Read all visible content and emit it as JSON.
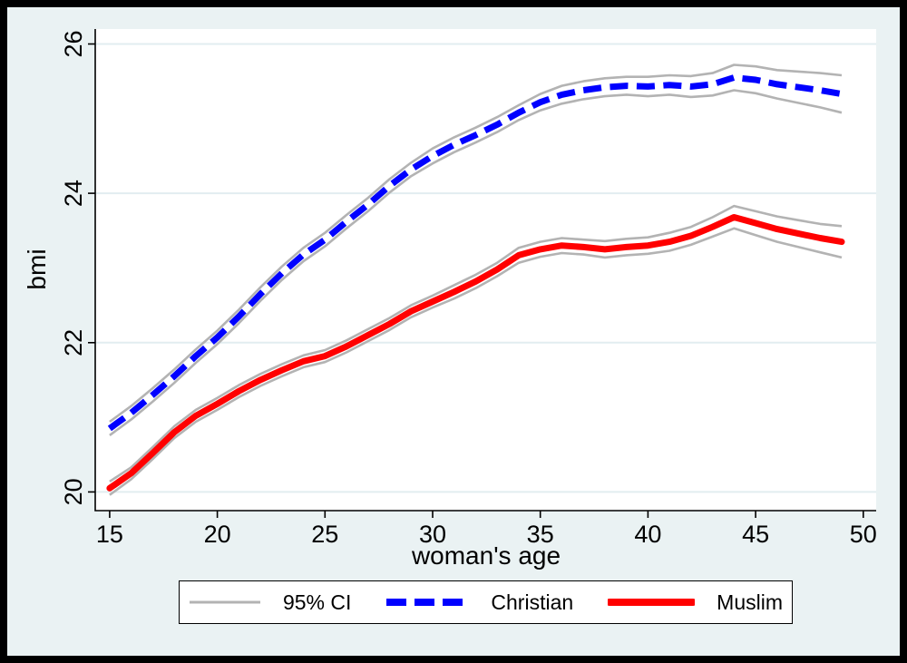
{
  "figure": {
    "frame_color": "#000000",
    "background_color": "#eaf2f3",
    "plot_background_color": "#ffffff",
    "grid_color": "#e2edf0",
    "axis_color": "#000000",
    "text_color": "#000000"
  },
  "chart_data": {
    "type": "line",
    "title": "",
    "xlabel": "woman's age",
    "ylabel": "bmi",
    "xlim": [
      14.33,
      50.6
    ],
    "ylim": [
      19.75,
      26.2
    ],
    "x_ticks": [
      15,
      20,
      25,
      30,
      35,
      40,
      45,
      50
    ],
    "y_ticks": [
      20,
      22,
      24,
      26
    ],
    "grid": "horizontal",
    "x": [
      15,
      16,
      17,
      18,
      19,
      20,
      21,
      22,
      23,
      24,
      25,
      26,
      27,
      28,
      29,
      30,
      31,
      32,
      33,
      34,
      35,
      36,
      37,
      38,
      39,
      40,
      41,
      42,
      43,
      44,
      45,
      46,
      47,
      48,
      49
    ],
    "series": [
      {
        "name": "Christian",
        "color": "#0000ff",
        "style": "dashed",
        "values": [
          20.85,
          21.06,
          21.3,
          21.55,
          21.82,
          22.07,
          22.35,
          22.65,
          22.93,
          23.18,
          23.38,
          23.62,
          23.85,
          24.1,
          24.32,
          24.5,
          24.65,
          24.78,
          24.92,
          25.08,
          25.22,
          25.32,
          25.38,
          25.42,
          25.44,
          25.43,
          25.45,
          25.43,
          25.46,
          25.55,
          25.52,
          25.46,
          25.42,
          25.38,
          25.33
        ]
      },
      {
        "name": "Muslim",
        "color": "#ff0000",
        "style": "solid",
        "values": [
          20.05,
          20.25,
          20.52,
          20.8,
          21.02,
          21.18,
          21.35,
          21.5,
          21.63,
          21.75,
          21.82,
          21.95,
          22.1,
          22.25,
          22.42,
          22.55,
          22.68,
          22.82,
          22.98,
          23.17,
          23.25,
          23.3,
          23.28,
          23.25,
          23.28,
          23.3,
          23.35,
          23.43,
          23.55,
          23.68,
          23.6,
          23.52,
          23.46,
          23.4,
          23.35
        ]
      }
    ],
    "ci": {
      "label": "95% CI",
      "color": "#b3b3b3",
      "bands": [
        {
          "series": "Christian",
          "hi": [
            20.94,
            21.15,
            21.39,
            21.64,
            21.91,
            22.16,
            22.44,
            22.74,
            23.02,
            23.27,
            23.47,
            23.71,
            23.94,
            24.19,
            24.41,
            24.6,
            24.75,
            24.88,
            25.02,
            25.18,
            25.33,
            25.44,
            25.5,
            25.54,
            25.56,
            25.56,
            25.58,
            25.57,
            25.61,
            25.72,
            25.7,
            25.65,
            25.63,
            25.61,
            25.58
          ],
          "lo": [
            20.76,
            20.97,
            21.21,
            21.46,
            21.73,
            21.98,
            22.26,
            22.56,
            22.84,
            23.09,
            23.29,
            23.53,
            23.76,
            24.01,
            24.23,
            24.4,
            24.55,
            24.68,
            24.82,
            24.98,
            25.11,
            25.2,
            25.26,
            25.3,
            25.32,
            25.3,
            25.32,
            25.29,
            25.31,
            25.38,
            25.34,
            25.27,
            25.21,
            25.15,
            25.08
          ]
        },
        {
          "series": "Muslim",
          "hi": [
            20.14,
            20.33,
            20.6,
            20.88,
            21.1,
            21.26,
            21.43,
            21.58,
            21.71,
            21.83,
            21.9,
            22.03,
            22.18,
            22.33,
            22.5,
            22.63,
            22.77,
            22.91,
            23.07,
            23.27,
            23.35,
            23.4,
            23.38,
            23.36,
            23.39,
            23.41,
            23.47,
            23.55,
            23.68,
            23.83,
            23.76,
            23.69,
            23.64,
            23.59,
            23.56
          ],
          "lo": [
            19.96,
            20.17,
            20.44,
            20.72,
            20.94,
            21.1,
            21.27,
            21.42,
            21.55,
            21.67,
            21.74,
            21.87,
            22.02,
            22.17,
            22.34,
            22.47,
            22.59,
            22.73,
            22.89,
            23.07,
            23.15,
            23.2,
            23.18,
            23.14,
            23.17,
            23.19,
            23.23,
            23.31,
            23.42,
            23.53,
            23.44,
            23.35,
            23.28,
            23.21,
            23.14
          ]
        }
      ]
    },
    "legend": {
      "position": "bottom",
      "items": [
        {
          "label": "95% CI"
        },
        {
          "label": "Christian"
        },
        {
          "label": "Muslim"
        }
      ]
    }
  }
}
